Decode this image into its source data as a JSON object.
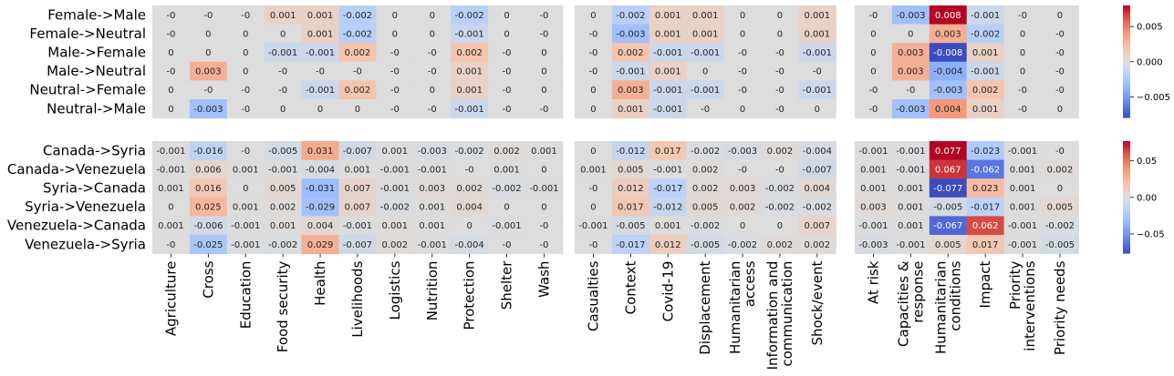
{
  "chart_data": {
    "type": "heatmap",
    "colormap": "coolwarm",
    "missing_cell_color": "#dddddd",
    "column_groups": [
      [
        "Agriculture",
        "Cross",
        "Education",
        "Food security",
        "Health",
        "Livelihoods",
        "Logistics",
        "Nutrition",
        "Protection",
        "Shelter",
        "Wash"
      ],
      [
        "Casualties",
        "Context",
        "Covid-19",
        "Displacement",
        "Humanitarian\naccess",
        "Information and\ncommunication",
        "Shock/event"
      ],
      [
        "At risk",
        "Capacities &\nresponse",
        "Humanitarian\nconditions",
        "Impact",
        "Priority\ninterventions",
        "Priority needs"
      ]
    ],
    "panels": [
      {
        "rows": [
          "Female->Male",
          "Female->Neutral",
          "Male->Female",
          "Male->Neutral",
          "Neutral->Female",
          "Neutral->Male"
        ],
        "colorbar": {
          "min": -0.008,
          "max": 0.008,
          "ticks": [
            0.005,
            0.0,
            -0.005
          ],
          "tick_labels": [
            "0.005",
            "0.000",
            "−0.005"
          ]
        },
        "groups": [
          [
            [
              "-0",
              "-0",
              "-0",
              "0.001",
              "0.001",
              "-0.002",
              "0",
              "0",
              "-0.002",
              "0",
              "-0"
            ],
            [
              "-0",
              "0",
              "0",
              "0",
              "0.001",
              "-0.002",
              "0",
              "0",
              "-0.001",
              "0",
              "-0"
            ],
            [
              "0",
              "0",
              "0",
              "-0.001",
              "-0.001",
              "0.002",
              "-0",
              "-0",
              "0.002",
              "-0",
              "0"
            ],
            [
              "-0",
              "0.003",
              "0",
              "-0",
              "-0",
              "-0",
              "-0",
              "-0",
              "0.001",
              "-0",
              "0"
            ],
            [
              "0",
              "-0",
              "-0",
              "-0",
              "-0.001",
              "0.002",
              "-0",
              "0",
              "0.001",
              "-0",
              "0"
            ],
            [
              "0",
              "-0.003",
              "-0",
              "0",
              "0",
              "0",
              "-0",
              "-0",
              "-0.001",
              "-0",
              "-0"
            ]
          ],
          [
            [
              "0",
              "-0.002",
              "0.001",
              "0.001",
              "0",
              "0",
              "0.001"
            ],
            [
              "-0",
              "-0.003",
              "0.001",
              "0.001",
              "0",
              "0",
              "0.001"
            ],
            [
              "-0",
              "0.002",
              "-0.001",
              "-0.001",
              "-0",
              "-0",
              "-0.001"
            ],
            [
              "-0",
              "-0.001",
              "0.001",
              "0",
              "-0",
              "-0",
              "-0"
            ],
            [
              "0",
              "0.003",
              "-0.001",
              "-0.001",
              "-0",
              "-0",
              "-0.001"
            ],
            [
              "0",
              "0.001",
              "-0.001",
              "-0",
              "0",
              "-0",
              "0"
            ]
          ],
          [
            [
              "-0",
              "-0.003",
              "0.008",
              "-0.001",
              "-0",
              "0"
            ],
            [
              "0",
              "0",
              "0.003",
              "-0.002",
              "0",
              "-0"
            ],
            [
              "0",
              "0.003",
              "-0.008",
              "0.001",
              "0",
              "-0"
            ],
            [
              "0",
              "0.003",
              "-0.004",
              "-0.001",
              "0",
              "-0"
            ],
            [
              "-0",
              "-0",
              "-0.003",
              "0.002",
              "-0",
              "-0"
            ],
            [
              "-0",
              "-0.003",
              "0.004",
              "0.001",
              "-0",
              "0"
            ]
          ]
        ]
      },
      {
        "rows": [
          "Canada->Syria",
          "Canada->Venezuela",
          "Syria->Canada",
          "Syria->Venezuela",
          "Venezuela->Canada",
          "Venezuela->Syria"
        ],
        "colorbar": {
          "min": -0.077,
          "max": 0.077,
          "ticks": [
            0.05,
            0.0,
            -0.05
          ],
          "tick_labels": [
            "0.05",
            "0.00",
            "−0.05"
          ]
        },
        "groups": [
          [
            [
              "-0.001",
              "-0.016",
              "-0",
              "-0.005",
              "0.031",
              "-0.007",
              "0.001",
              "-0.003",
              "-0.002",
              "0.002",
              "0.001"
            ],
            [
              "-0.001",
              "0.006",
              "0.001",
              "-0.001",
              "-0.004",
              "0.001",
              "-0.001",
              "-0.001",
              "-0",
              "0.001",
              "0"
            ],
            [
              "0.001",
              "0.016",
              "0",
              "0.005",
              "-0.031",
              "0.007",
              "-0.001",
              "0.003",
              "0.002",
              "-0.002",
              "-0.001"
            ],
            [
              "0",
              "0.025",
              "0.001",
              "0.002",
              "-0.029",
              "0.007",
              "-0.002",
              "0.001",
              "0.004",
              "0",
              "0"
            ],
            [
              "0.001",
              "-0.006",
              "-0.001",
              "0.001",
              "0.004",
              "-0.001",
              "0.001",
              "0.001",
              "0",
              "-0.001",
              "-0"
            ],
            [
              "-0",
              "-0.025",
              "-0.001",
              "-0.002",
              "0.029",
              "-0.007",
              "0.002",
              "-0.001",
              "-0.004",
              "-0",
              "-0"
            ]
          ],
          [
            [
              "0",
              "-0.012",
              "0.017",
              "-0.002",
              "-0.003",
              "0.002",
              "-0.004"
            ],
            [
              "0.001",
              "0.005",
              "-0.001",
              "0.002",
              "-0",
              "-0",
              "-0.007"
            ],
            [
              "-0",
              "0.012",
              "-0.017",
              "0.002",
              "0.003",
              "-0.002",
              "0.004"
            ],
            [
              "0",
              "0.017",
              "-0.012",
              "0.005",
              "0.002",
              "-0.002",
              "-0.002"
            ],
            [
              "-0.001",
              "-0.005",
              "0.001",
              "-0.002",
              "0",
              "0",
              "0.007"
            ],
            [
              "-0",
              "-0.017",
              "0.012",
              "-0.005",
              "-0.002",
              "0.002",
              "0.002"
            ]
          ],
          [
            [
              "-0.001",
              "-0.001",
              "0.077",
              "-0.023",
              "-0.001",
              "-0"
            ],
            [
              "0.001",
              "-0.001",
              "0.067",
              "-0.062",
              "0.001",
              "0.002"
            ],
            [
              "0.001",
              "0.001",
              "-0.077",
              "0.023",
              "0.001",
              "0"
            ],
            [
              "0.003",
              "0.001",
              "-0.005",
              "-0.017",
              "0.001",
              "0.005"
            ],
            [
              "-0.001",
              "0.001",
              "-0.067",
              "0.062",
              "-0.001",
              "-0.002"
            ],
            [
              "-0.003",
              "-0.001",
              "0.005",
              "0.017",
              "-0.001",
              "-0.005"
            ]
          ]
        ]
      }
    ]
  }
}
